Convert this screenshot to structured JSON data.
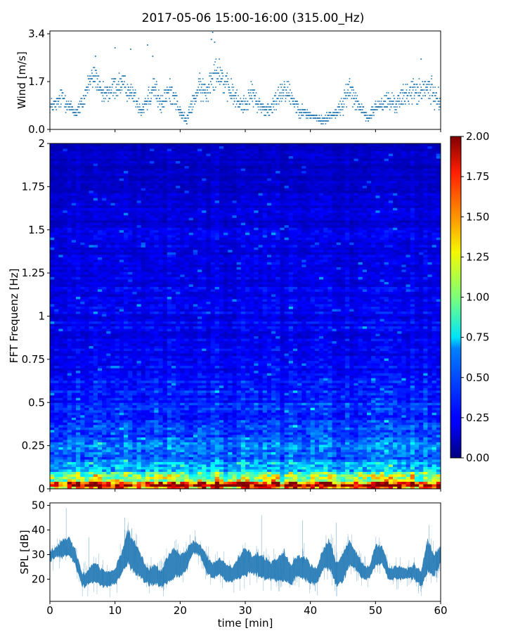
{
  "figure": {
    "title": "2017-05-06 15:00-16:00 (315.00_Hz)"
  },
  "chart_data": [
    {
      "type": "scatter",
      "panel": "wind",
      "ylabel": "Wind [m/s]",
      "xlim": [
        0,
        60
      ],
      "ylim": [
        0,
        3.5
      ],
      "yticks": [
        0.0,
        1.7,
        3.4
      ],
      "ytick_labels": [
        "0.0",
        "1.7",
        "3.4"
      ],
      "color": "#1f77b4",
      "envelope": {
        "x": [
          0,
          1,
          2,
          3,
          4,
          5,
          6,
          7,
          8,
          9,
          10,
          11,
          12,
          13,
          14,
          15,
          16,
          17,
          18,
          19,
          20,
          21,
          22,
          23,
          24,
          25,
          26,
          27,
          28,
          29,
          30,
          31,
          32,
          33,
          34,
          35,
          36,
          37,
          38,
          39,
          40,
          41,
          42,
          43,
          44,
          45,
          46,
          47,
          48,
          49,
          50,
          51,
          52,
          53,
          54,
          55,
          56,
          57,
          58,
          59,
          60
        ],
        "mean": [
          0.8,
          0.9,
          1.2,
          0.8,
          0.6,
          0.9,
          1.7,
          1.9,
          1.2,
          1.3,
          1.5,
          1.6,
          1.4,
          1.2,
          0.7,
          1.1,
          1.6,
          0.8,
          1.3,
          1.3,
          0.6,
          0.3,
          1.0,
          1.5,
          1.3,
          2.0,
          2.1,
          1.5,
          1.3,
          0.9,
          0.9,
          1.3,
          0.9,
          0.7,
          0.7,
          1.2,
          1.5,
          1.2,
          0.8,
          0.6,
          0.5,
          0.4,
          0.3,
          0.5,
          0.6,
          0.9,
          1.5,
          1.1,
          0.6,
          0.4,
          0.8,
          0.9,
          1.0,
          0.9,
          1.1,
          1.3,
          1.4,
          1.3,
          1.5,
          1.2,
          1.0
        ],
        "spread": [
          0.4,
          0.4,
          0.6,
          0.4,
          0.3,
          0.5,
          0.6,
          0.6,
          0.5,
          0.6,
          0.7,
          0.7,
          0.5,
          0.5,
          0.4,
          0.7,
          0.8,
          0.5,
          0.6,
          0.6,
          0.3,
          0.2,
          0.5,
          0.6,
          0.7,
          0.8,
          0.8,
          0.7,
          0.6,
          0.5,
          0.5,
          0.6,
          0.4,
          0.4,
          0.4,
          0.7,
          0.7,
          0.6,
          0.4,
          0.3,
          0.3,
          0.2,
          0.2,
          0.3,
          0.3,
          0.5,
          0.7,
          0.5,
          0.4,
          0.2,
          0.4,
          0.5,
          0.5,
          0.5,
          0.6,
          0.6,
          0.7,
          0.7,
          0.8,
          0.6,
          0.5
        ]
      },
      "outliers": [
        [
          10,
          2.9
        ],
        [
          12.4,
          2.85
        ],
        [
          15,
          3.0
        ],
        [
          25,
          3.45
        ],
        [
          24.8,
          3.2
        ],
        [
          25.3,
          3.1
        ],
        [
          15.8,
          2.6
        ],
        [
          7,
          2.6
        ],
        [
          57,
          2.5
        ]
      ]
    },
    {
      "type": "heatmap",
      "panel": "spectrogram",
      "ylabel": "FFT Frequenz [Hz]",
      "xlim": [
        0,
        60
      ],
      "ylim": [
        0,
        2
      ],
      "yticks": [
        0,
        0.25,
        0.5,
        0.75,
        1,
        1.25,
        1.5,
        1.75,
        2
      ],
      "ytick_labels": [
        "0",
        "0.25",
        "0.5",
        "0.75",
        "1",
        "1.25",
        "1.5",
        "1.75",
        "2"
      ],
      "colormap": "jet",
      "colorbar": {
        "range": [
          0,
          2
        ],
        "ticks": [
          0.0,
          0.25,
          0.5,
          0.75,
          1.0,
          1.25,
          1.5,
          1.75,
          2.0
        ],
        "tick_labels": [
          "0.00",
          "0.25",
          "0.50",
          "0.75",
          "1.00",
          "1.25",
          "1.50",
          "1.75",
          "2.00"
        ]
      },
      "frequency_profile": {
        "freq": [
          0,
          0.02,
          0.04,
          0.06,
          0.08,
          0.1,
          0.12,
          0.15,
          0.2,
          0.25,
          0.3,
          0.4,
          0.5,
          0.6,
          0.75,
          1.0,
          1.25,
          1.5,
          1.75,
          2.0
        ],
        "typical_value": [
          1.9,
          1.6,
          1.3,
          1.05,
          0.85,
          0.7,
          0.58,
          0.5,
          0.45,
          0.42,
          0.36,
          0.32,
          0.3,
          0.27,
          0.24,
          0.22,
          0.2,
          0.18,
          0.15,
          0.12
        ]
      }
    },
    {
      "type": "area",
      "panel": "spl",
      "ylabel": "SPL [dB]",
      "xlabel": "time [min]",
      "xlim": [
        0,
        60
      ],
      "ylim": [
        11,
        51
      ],
      "yticks": [
        20,
        30,
        40,
        50
      ],
      "ytick_labels": [
        "20",
        "30",
        "40",
        "50"
      ],
      "xticks": [
        0,
        10,
        20,
        30,
        40,
        50,
        60
      ],
      "xtick_labels": [
        "0",
        "10",
        "20",
        "30",
        "40",
        "50",
        "60"
      ],
      "color": "#1f77b4",
      "envelope": {
        "x": [
          0,
          1,
          2,
          3,
          4,
          5,
          6,
          7,
          8,
          9,
          10,
          11,
          12,
          13,
          14,
          15,
          16,
          17,
          18,
          19,
          20,
          21,
          22,
          23,
          24,
          25,
          26,
          27,
          28,
          29,
          30,
          31,
          32,
          33,
          34,
          35,
          36,
          37,
          38,
          39,
          40,
          41,
          42,
          43,
          44,
          45,
          46,
          47,
          48,
          49,
          50,
          51,
          52,
          53,
          54,
          55,
          56,
          57,
          58,
          59,
          60
        ],
        "low": [
          27,
          29,
          29,
          30,
          25,
          17,
          18,
          19,
          17,
          17,
          18,
          22,
          26,
          22,
          20,
          18,
          18,
          17,
          18,
          20,
          21,
          24,
          31,
          30,
          23,
          20,
          22,
          19,
          19,
          20,
          21,
          23,
          21,
          20,
          20,
          19,
          19,
          18,
          21,
          20,
          18,
          18,
          24,
          24,
          17,
          19,
          25,
          24,
          20,
          20,
          26,
          26,
          20,
          20,
          20,
          20,
          20,
          17,
          23,
          21,
          27
        ],
        "high": [
          31,
          33,
          36,
          37,
          31,
          22,
          24,
          27,
          24,
          23,
          24,
          31,
          40,
          35,
          30,
          24,
          26,
          23,
          29,
          33,
          30,
          32,
          36,
          34,
          30,
          26,
          29,
          26,
          25,
          29,
          33,
          30,
          30,
          29,
          27,
          29,
          31,
          26,
          29,
          30,
          26,
          24,
          33,
          36,
          27,
          31,
          36,
          31,
          26,
          25,
          34,
          34,
          25,
          25,
          25,
          24,
          26,
          23,
          36,
          30,
          34
        ]
      },
      "spikes": [
        [
          2.5,
          49
        ],
        [
          11.5,
          45
        ],
        [
          32.5,
          46
        ],
        [
          38.8,
          44
        ],
        [
          44,
          43
        ],
        [
          58.2,
          42
        ],
        [
          6,
          37
        ],
        [
          21.5,
          38
        ]
      ]
    }
  ]
}
